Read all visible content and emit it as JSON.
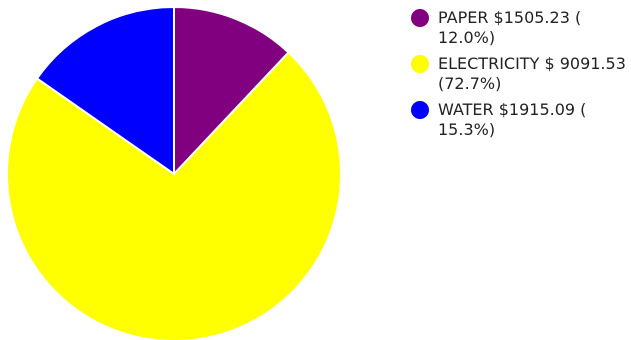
{
  "chart_data": {
    "type": "pie",
    "title": "",
    "slices": [
      {
        "label": "PAPER",
        "value": 1505.23,
        "percent": 12.0,
        "color": "#800080",
        "legend_text": "PAPER $1505.23 ( 12.0%)"
      },
      {
        "label": "ELECTRICITY",
        "value": 9091.53,
        "percent": 72.7,
        "color": "#ffff00",
        "legend_text": "ELECTRICITY $ 9091.53 (72.7%)"
      },
      {
        "label": "WATER",
        "value": 1915.09,
        "percent": 15.3,
        "color": "#0000ff",
        "legend_text": "WATER $1915.09 ( 15.3%)"
      }
    ],
    "legend_position": "right",
    "slice_border_color": "#ffffff"
  }
}
